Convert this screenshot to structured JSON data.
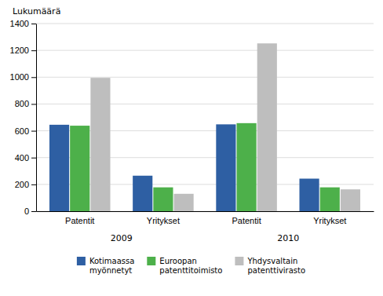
{
  "chart_data": {
    "type": "bar",
    "ylabel": "Lukumäärä",
    "categories": [
      "Patentit",
      "Yritykset",
      "Patentit",
      "Yritykset"
    ],
    "annotations": [
      "2009",
      "2010"
    ],
    "series": [
      {
        "name": "Kotimaassa\nmyönnetyt",
        "color": "#2E5FA3",
        "values": [
          645,
          265,
          648,
          243
        ]
      },
      {
        "name": "Euroopan\npatenttitoimisto",
        "color": "#4DB04A",
        "values": [
          638,
          178,
          657,
          178
        ]
      },
      {
        "name": "Yhdysvaltain\npatenttivirasto",
        "color": "#BEBEBE",
        "values": [
          995,
          130,
          1252,
          163
        ]
      }
    ],
    "ylim": [
      0,
      1400
    ],
    "yticks": [
      0,
      200,
      400,
      600,
      800,
      1000,
      1200,
      1400
    ],
    "grid": true,
    "legend": "bottom"
  }
}
